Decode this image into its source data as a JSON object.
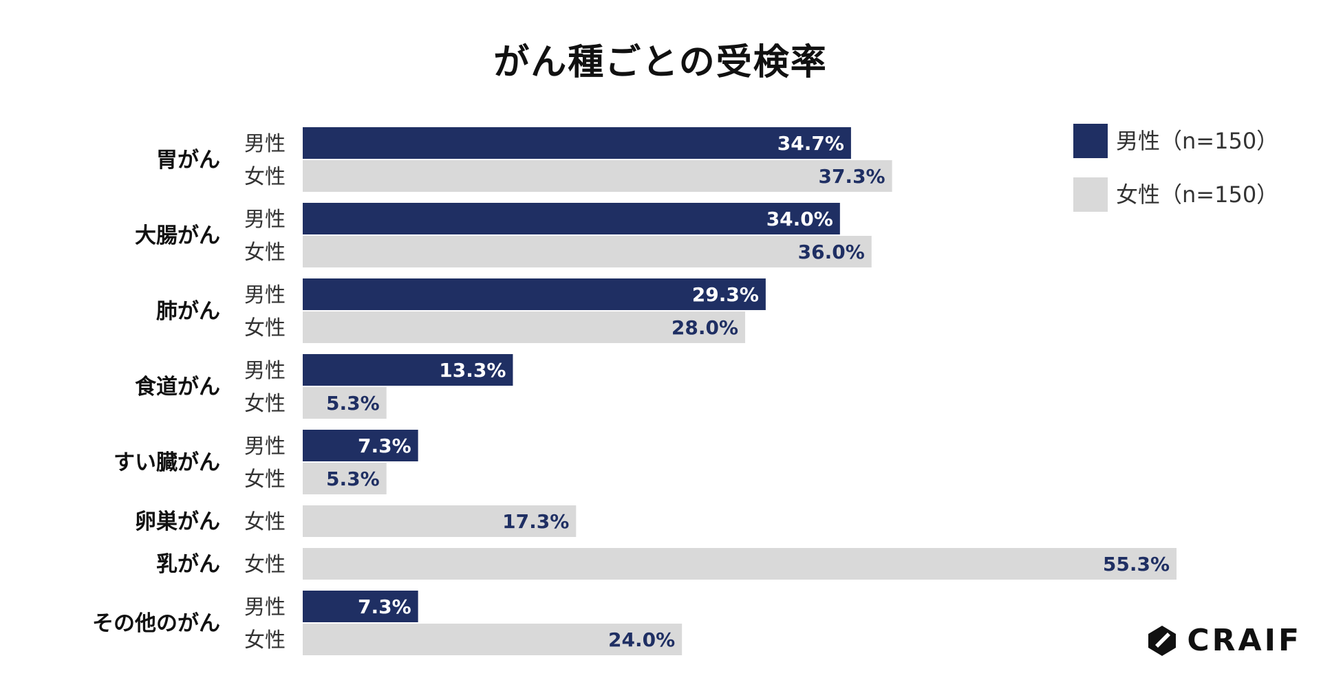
{
  "chart_data": {
    "type": "bar",
    "orientation": "horizontal",
    "title": "がん種ごとの受検率",
    "unit": "%",
    "xlim": [
      0,
      55.3
    ],
    "legend_position": "top-right",
    "series": [
      {
        "key": "male",
        "name": "男性（n=150）",
        "short": "男性",
        "color": "#1f2f63",
        "label_color": "#ffffff"
      },
      {
        "key": "female",
        "name": "女性（n=150）",
        "short": "女性",
        "color": "#d9d9d9",
        "label_color": "#1f2f63"
      }
    ],
    "categories": [
      {
        "name": "胃がん",
        "bars": [
          {
            "series": "male",
            "value": 34.7,
            "label": "34.7%"
          },
          {
            "series": "female",
            "value": 37.3,
            "label": "37.3%"
          }
        ]
      },
      {
        "name": "大腸がん",
        "bars": [
          {
            "series": "male",
            "value": 34.0,
            "label": "34.0%"
          },
          {
            "series": "female",
            "value": 36.0,
            "label": "36.0%"
          }
        ]
      },
      {
        "name": "肺がん",
        "bars": [
          {
            "series": "male",
            "value": 29.3,
            "label": "29.3%"
          },
          {
            "series": "female",
            "value": 28.0,
            "label": "28.0%"
          }
        ]
      },
      {
        "name": "食道がん",
        "bars": [
          {
            "series": "male",
            "value": 13.3,
            "label": "13.3%"
          },
          {
            "series": "female",
            "value": 5.3,
            "label": "5.3%"
          }
        ]
      },
      {
        "name": "すい臓がん",
        "bars": [
          {
            "series": "male",
            "value": 7.3,
            "label": "7.3%"
          },
          {
            "series": "female",
            "value": 5.3,
            "label": "5.3%"
          }
        ]
      },
      {
        "name": "卵巣がん",
        "bars": [
          {
            "series": "female",
            "value": 17.3,
            "label": "17.3%"
          }
        ]
      },
      {
        "name": "乳がん",
        "bars": [
          {
            "series": "female",
            "value": 55.3,
            "label": "55.3%"
          }
        ]
      },
      {
        "name": "その他のがん",
        "bars": [
          {
            "series": "male",
            "value": 7.3,
            "label": "7.3%"
          },
          {
            "series": "female",
            "value": 24.0,
            "label": "24.0%"
          }
        ]
      }
    ]
  },
  "logo": {
    "text": "CRAIF",
    "icon": "craif-logo-icon"
  }
}
